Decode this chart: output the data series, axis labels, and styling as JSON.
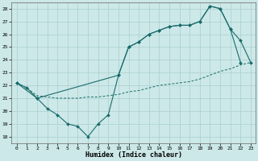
{
  "xlabel": "Humidex (Indice chaleur)",
  "bg_color": "#cce8e8",
  "grid_color": "#aacfcf",
  "line_color": "#1a6b6b",
  "xlim": [
    -0.5,
    23.5
  ],
  "ylim": [
    17.5,
    28.5
  ],
  "yticks": [
    18,
    19,
    20,
    21,
    22,
    23,
    24,
    25,
    26,
    27,
    28
  ],
  "xticks": [
    0,
    1,
    2,
    3,
    4,
    5,
    6,
    7,
    8,
    9,
    10,
    11,
    12,
    13,
    14,
    15,
    16,
    17,
    18,
    19,
    20,
    21,
    22,
    23
  ],
  "line1_x": [
    0,
    1,
    2,
    3,
    4,
    5,
    6,
    7,
    8,
    9,
    10,
    11,
    12,
    13,
    14,
    15,
    16,
    17,
    18,
    19,
    20,
    21,
    22
  ],
  "line1_y": [
    22.2,
    21.8,
    21.0,
    20.2,
    19.7,
    19.0,
    18.8,
    18.0,
    19.0,
    19.7,
    22.8,
    25.0,
    25.4,
    26.0,
    26.3,
    26.6,
    26.7,
    26.7,
    27.0,
    28.2,
    28.0,
    26.4,
    23.8
  ],
  "line2_x": [
    0,
    1,
    2,
    3,
    4,
    5,
    6,
    7,
    8,
    9,
    10,
    11,
    12,
    13,
    14,
    15,
    16,
    17,
    18,
    19,
    20,
    21,
    22,
    23
  ],
  "line2_y": [
    22.2,
    21.8,
    21.2,
    21.1,
    21.0,
    21.0,
    21.0,
    21.1,
    21.1,
    21.2,
    21.3,
    21.5,
    21.6,
    21.8,
    22.0,
    22.1,
    22.2,
    22.3,
    22.5,
    22.8,
    23.1,
    23.3,
    23.6,
    23.8
  ],
  "line3_x": [
    0,
    2,
    10,
    11,
    12,
    13,
    14,
    15,
    16,
    17,
    18,
    19,
    20,
    21,
    22,
    23
  ],
  "line3_y": [
    22.2,
    21.0,
    22.8,
    25.0,
    25.4,
    26.0,
    26.3,
    26.6,
    26.7,
    26.7,
    27.0,
    28.2,
    28.0,
    26.4,
    25.5,
    23.8
  ]
}
